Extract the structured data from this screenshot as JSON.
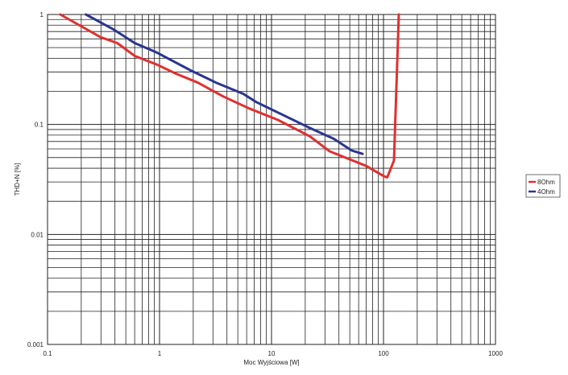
{
  "chart_data": {
    "type": "line",
    "title": "",
    "xlabel": "Moc Wyjściowa [W]",
    "ylabel": "THD+N [%]",
    "xscale": "log",
    "yscale": "log",
    "xlim": [
      0.1,
      1000
    ],
    "ylim": [
      0.001,
      1
    ],
    "x_ticks": [
      "0.1",
      "1",
      "10",
      "100",
      "1000"
    ],
    "y_ticks": [
      "1",
      "0.1",
      "0.01",
      "0.001"
    ],
    "grid": true,
    "legend_position": "right",
    "series": [
      {
        "name": "8Ohm",
        "color": "#e03030",
        "x": [
          0.13,
          0.3,
          0.42,
          0.6,
          0.95,
          1.4,
          2.2,
          3.7,
          6.3,
          11.4,
          22,
          33,
          70,
          100,
          108,
          124,
          137
        ],
        "y": [
          1,
          0.62,
          0.55,
          0.42,
          0.35,
          0.29,
          0.24,
          0.18,
          0.14,
          0.11,
          0.078,
          0.057,
          0.042,
          0.034,
          0.033,
          0.047,
          1
        ]
      },
      {
        "name": "4Ohm",
        "color": "#2a3590",
        "x": [
          0.22,
          0.39,
          0.6,
          0.95,
          1.9,
          3.2,
          5.6,
          7.3,
          21,
          36,
          52,
          65
        ],
        "y": [
          1,
          0.73,
          0.55,
          0.45,
          0.31,
          0.24,
          0.19,
          0.16,
          0.095,
          0.074,
          0.058,
          0.054
        ]
      }
    ]
  }
}
